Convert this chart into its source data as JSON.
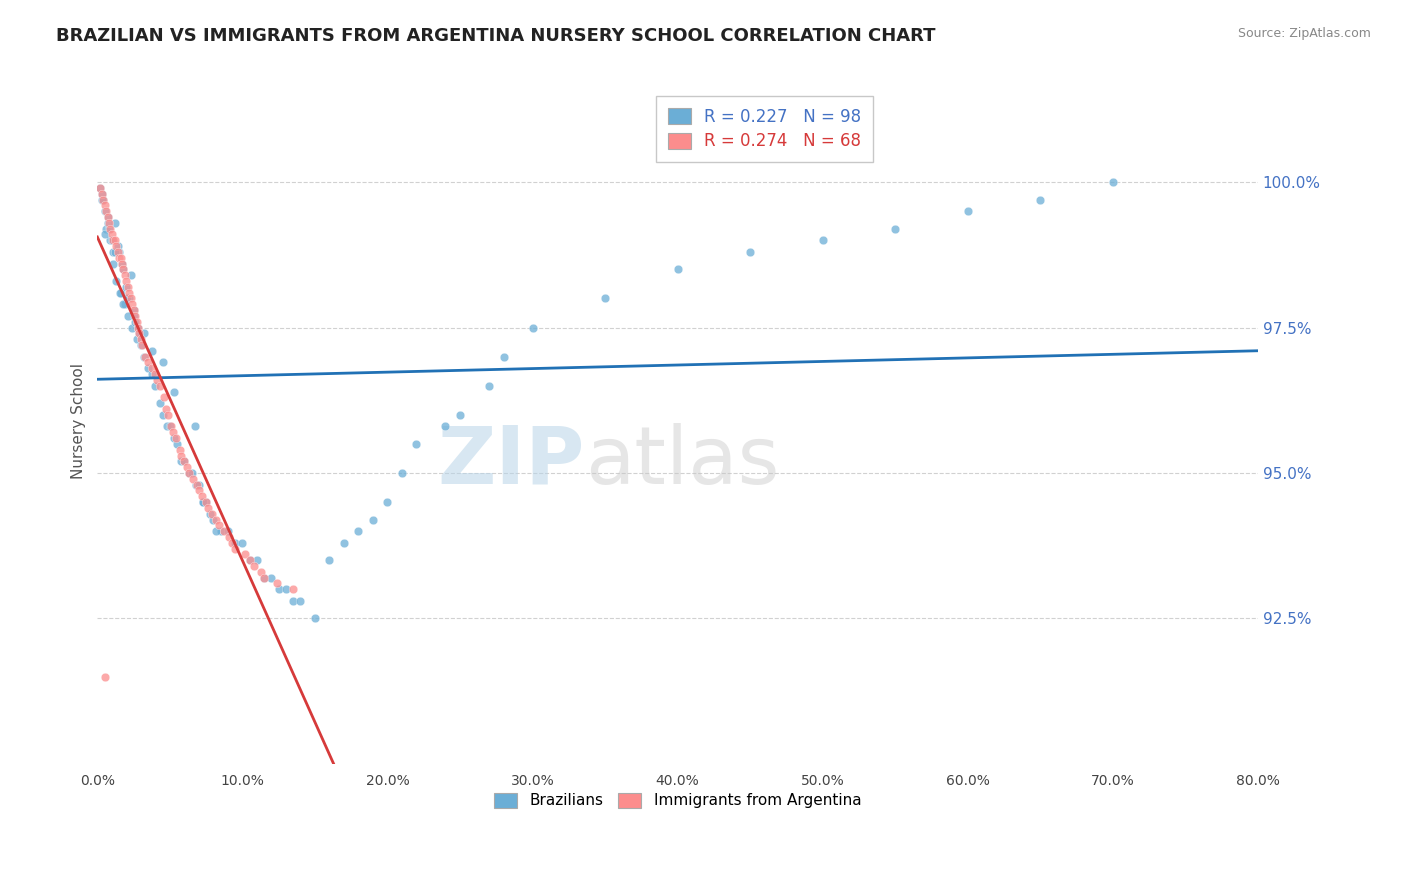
{
  "title": "BRAZILIAN VS IMMIGRANTS FROM ARGENTINA NURSERY SCHOOL CORRELATION CHART",
  "source": "Source: ZipAtlas.com",
  "ylabel": "Nursery School",
  "legend_brazilians": "Brazilians",
  "legend_immigrants": "Immigrants from Argentina",
  "r_brazilians": 0.227,
  "n_brazilians": 98,
  "r_immigrants": 0.274,
  "n_immigrants": 68,
  "color_brazilians": "#6baed6",
  "color_immigrants": "#fc8d8d",
  "color_line_brazilians": "#2171b5",
  "color_line_immigrants": "#d63a3a",
  "watermark_zip": "ZIP",
  "watermark_atlas": "atlas",
  "xmin": 0.0,
  "xmax": 80.0,
  "ymin": 90.0,
  "ymax": 101.8,
  "yticks": [
    92.5,
    95.0,
    97.5,
    100.0
  ],
  "background_color": "#ffffff",
  "grid_color": "#cccccc",
  "scatter_alpha": 0.75,
  "scatter_size": 38,
  "brazilians_x": [
    0.2,
    0.3,
    0.4,
    0.5,
    0.6,
    0.7,
    0.8,
    0.9,
    1.0,
    1.1,
    1.2,
    1.3,
    1.4,
    1.5,
    1.6,
    1.7,
    1.8,
    1.9,
    2.0,
    2.1,
    2.2,
    2.3,
    2.4,
    2.5,
    2.6,
    2.7,
    2.8,
    2.9,
    3.0,
    3.2,
    3.5,
    3.8,
    4.0,
    4.3,
    4.5,
    4.8,
    5.0,
    5.3,
    5.5,
    5.8,
    6.0,
    6.3,
    6.5,
    6.8,
    7.0,
    7.3,
    7.5,
    7.8,
    8.0,
    8.5,
    9.0,
    9.5,
    10.0,
    10.5,
    11.0,
    11.5,
    12.0,
    12.5,
    13.0,
    13.5,
    14.0,
    15.0,
    16.0,
    17.0,
    18.0,
    19.0,
    20.0,
    21.0,
    22.0,
    24.0,
    25.0,
    27.0,
    28.0,
    30.0,
    35.0,
    40.0,
    45.0,
    50.0,
    55.0,
    60.0,
    65.0,
    70.0,
    0.35,
    0.55,
    0.75,
    1.05,
    1.25,
    1.55,
    1.75,
    2.05,
    2.55,
    3.25,
    3.75,
    4.55,
    5.25,
    6.75,
    7.3,
    8.2
  ],
  "brazilians_y": [
    99.9,
    99.8,
    99.7,
    99.5,
    99.2,
    99.4,
    99.2,
    99.0,
    99.0,
    98.8,
    99.3,
    98.3,
    98.9,
    98.8,
    98.1,
    98.6,
    98.5,
    97.9,
    98.2,
    97.7,
    98.0,
    98.4,
    97.5,
    97.8,
    97.6,
    97.3,
    97.5,
    97.4,
    97.2,
    97.0,
    96.8,
    96.7,
    96.5,
    96.2,
    96.0,
    95.8,
    95.8,
    95.6,
    95.5,
    95.2,
    95.2,
    95.0,
    95.0,
    94.8,
    94.8,
    94.5,
    94.5,
    94.3,
    94.2,
    94.0,
    94.0,
    93.8,
    93.8,
    93.5,
    93.5,
    93.2,
    93.2,
    93.0,
    93.0,
    92.8,
    92.8,
    92.5,
    93.5,
    93.8,
    94.0,
    94.2,
    94.5,
    95.0,
    95.5,
    95.8,
    96.0,
    96.5,
    97.0,
    97.5,
    98.0,
    98.5,
    98.8,
    99.0,
    99.2,
    99.5,
    99.7,
    100.0,
    99.7,
    99.1,
    99.3,
    98.6,
    98.8,
    98.1,
    97.9,
    98.0,
    97.7,
    97.4,
    97.1,
    96.9,
    96.4,
    95.8,
    94.5,
    94.0
  ],
  "immigrants_x": [
    0.2,
    0.3,
    0.4,
    0.5,
    0.6,
    0.7,
    0.8,
    0.9,
    1.0,
    1.1,
    1.2,
    1.3,
    1.4,
    1.5,
    1.6,
    1.7,
    1.8,
    1.9,
    2.0,
    2.1,
    2.2,
    2.3,
    2.4,
    2.5,
    2.6,
    2.7,
    2.8,
    2.9,
    3.0,
    3.1,
    3.3,
    3.5,
    3.8,
    4.0,
    4.1,
    4.3,
    4.6,
    4.7,
    4.9,
    5.1,
    5.2,
    5.4,
    5.7,
    5.8,
    6.0,
    6.2,
    6.3,
    6.6,
    6.9,
    7.0,
    7.2,
    7.5,
    7.6,
    7.9,
    8.2,
    8.4,
    8.7,
    9.1,
    9.3,
    9.5,
    10.2,
    10.5,
    10.8,
    11.3,
    11.5,
    12.4,
    13.5,
    0.55
  ],
  "immigrants_y": [
    99.9,
    99.8,
    99.7,
    99.6,
    99.5,
    99.4,
    99.3,
    99.2,
    99.1,
    99.0,
    99.0,
    98.9,
    98.8,
    98.7,
    98.7,
    98.6,
    98.5,
    98.4,
    98.3,
    98.2,
    98.1,
    98.0,
    97.9,
    97.8,
    97.7,
    97.6,
    97.5,
    97.4,
    97.3,
    97.2,
    97.0,
    96.9,
    96.8,
    96.7,
    96.6,
    96.5,
    96.3,
    96.1,
    96.0,
    95.8,
    95.7,
    95.6,
    95.4,
    95.3,
    95.2,
    95.1,
    95.0,
    94.9,
    94.8,
    94.7,
    94.6,
    94.5,
    94.4,
    94.3,
    94.2,
    94.1,
    94.0,
    93.9,
    93.8,
    93.7,
    93.6,
    93.5,
    93.4,
    93.3,
    93.2,
    93.1,
    93.0,
    91.5
  ]
}
